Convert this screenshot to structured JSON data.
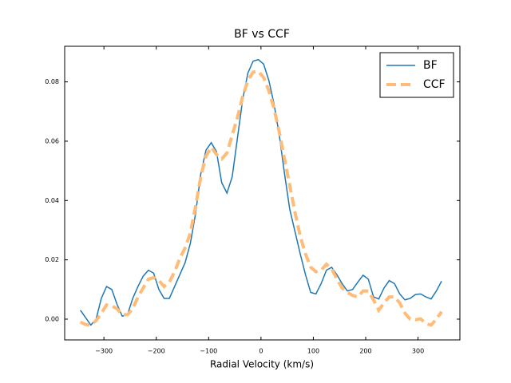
{
  "chart_data": {
    "type": "line",
    "title": "BF vs CCF",
    "x_label": "Radial Velocity (km/s)",
    "x": [
      -345,
      -335,
      -325,
      -315,
      -305,
      -295,
      -285,
      -275,
      -265,
      -255,
      -245,
      -235,
      -225,
      -215,
      -205,
      -195,
      -185,
      -175,
      -165,
      -155,
      -145,
      -135,
      -125,
      -115,
      -105,
      -95,
      -85,
      -75,
      -65,
      -55,
      -45,
      -35,
      -25,
      -15,
      -5,
      5,
      15,
      25,
      35,
      45,
      55,
      65,
      75,
      85,
      95,
      105,
      115,
      125,
      135,
      145,
      155,
      165,
      175,
      185,
      195,
      205,
      215,
      225,
      235,
      245,
      255,
      265,
      275,
      285,
      295,
      305,
      315,
      325,
      335,
      345
    ],
    "series": [
      {
        "name": "BF",
        "color": "#1f77b4",
        "dashed": false,
        "values": [
          0.003,
          0.0005,
          -0.002,
          0.0,
          0.007,
          0.011,
          0.01,
          0.005,
          0.001,
          0.0015,
          0.007,
          0.011,
          0.0145,
          0.0165,
          0.0155,
          0.01,
          0.007,
          0.007,
          0.011,
          0.015,
          0.019,
          0.0255,
          0.0355,
          0.049,
          0.057,
          0.0595,
          0.0565,
          0.046,
          0.0425,
          0.048,
          0.061,
          0.074,
          0.083,
          0.087,
          0.0875,
          0.086,
          0.0805,
          0.0725,
          0.062,
          0.049,
          0.037,
          0.0295,
          0.022,
          0.015,
          0.009,
          0.0085,
          0.012,
          0.0165,
          0.0175,
          0.015,
          0.012,
          0.0095,
          0.01,
          0.0125,
          0.0148,
          0.0135,
          0.0075,
          0.0068,
          0.0105,
          0.013,
          0.012,
          0.0085,
          0.0065,
          0.007,
          0.0083,
          0.0085,
          0.0075,
          0.0068,
          0.0095,
          0.0128
        ]
      },
      {
        "name": "CCF",
        "color": "#ffbb78",
        "dashed": true,
        "values": [
          -0.001,
          -0.0018,
          -0.002,
          -0.0005,
          0.002,
          0.0048,
          0.0045,
          0.0035,
          0.0015,
          0.0015,
          0.0035,
          0.0075,
          0.0105,
          0.0135,
          0.014,
          0.013,
          0.011,
          0.0125,
          0.016,
          0.0205,
          0.024,
          0.029,
          0.038,
          0.048,
          0.055,
          0.058,
          0.0555,
          0.054,
          0.056,
          0.062,
          0.068,
          0.075,
          0.0805,
          0.0833,
          0.0835,
          0.0815,
          0.077,
          0.071,
          0.063,
          0.054,
          0.045,
          0.036,
          0.028,
          0.022,
          0.0175,
          0.016,
          0.0165,
          0.0185,
          0.017,
          0.0135,
          0.0105,
          0.009,
          0.008,
          0.0075,
          0.0095,
          0.0095,
          0.0065,
          0.003,
          0.0055,
          0.0075,
          0.0075,
          0.0055,
          0.002,
          0.0,
          -0.0002,
          0.0001,
          -0.0015,
          -0.002,
          0.0,
          0.0025
        ]
      }
    ],
    "xlim": [
      -375,
      380
    ],
    "ylim": [
      -0.007,
      0.092
    ],
    "xticks": [
      {
        "value": -300,
        "label": "−300"
      },
      {
        "value": -200,
        "label": "−200"
      },
      {
        "value": -100,
        "label": "−100"
      },
      0,
      100,
      200,
      300
    ],
    "yticks": [
      {
        "value": 0,
        "label": "0.00"
      },
      0.02,
      0.04,
      0.06,
      0.08
    ],
    "legend": "upper right"
  }
}
